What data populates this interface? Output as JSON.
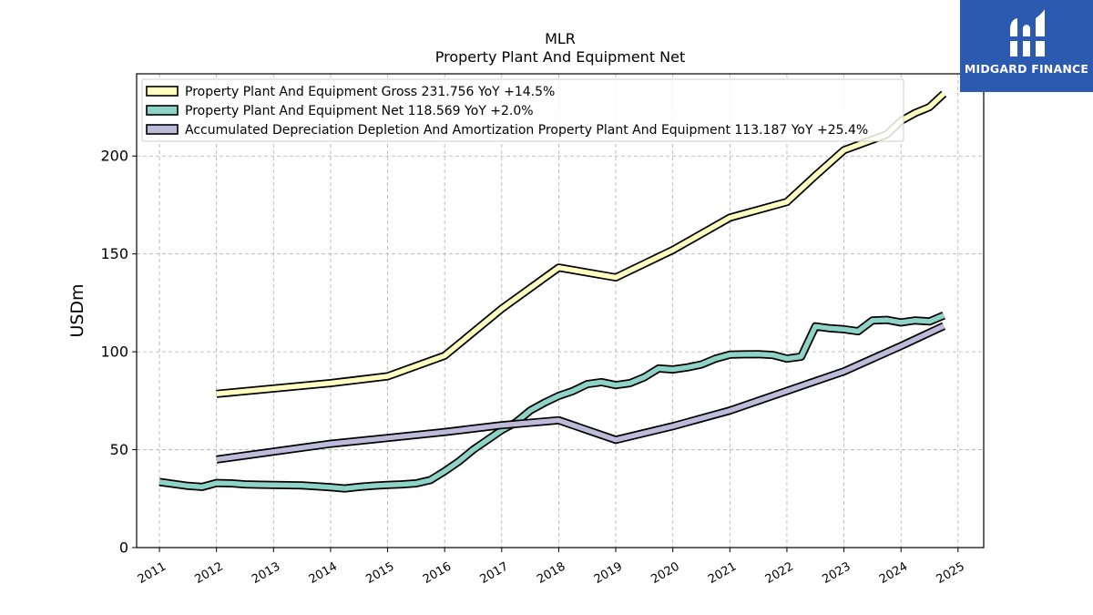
{
  "brand": {
    "name": "MIDGARD FINANCE",
    "color": "#2c5ab0"
  },
  "chart_data": {
    "type": "line",
    "title": "MLR",
    "subtitle": "Property Plant And Equipment Net",
    "ylabel": "USDm",
    "xlabel": "",
    "ylim": [
      0,
      242
    ],
    "xlim": [
      2010.6,
      2025.45
    ],
    "y_ticks": [
      0,
      50,
      100,
      150,
      200
    ],
    "x_ticks": [
      2011,
      2012,
      2013,
      2014,
      2015,
      2016,
      2017,
      2018,
      2019,
      2020,
      2021,
      2022,
      2023,
      2024,
      2025
    ],
    "grid": true,
    "legend_position": "top-left",
    "series": [
      {
        "name": "Property Plant And Equipment Gross",
        "legend_label": "Property Plant And Equipment Gross  231.756 YoY +14.5%",
        "color": "#ffffbf",
        "x": [
          2012.0,
          2014.0,
          2015.0,
          2016.0,
          2017.0,
          2018.0,
          2019.0,
          2020.0,
          2021.0,
          2022.0,
          2022.5,
          2023.0,
          2023.75,
          2024.0,
          2024.25,
          2024.5,
          2024.75
        ],
        "y": [
          78.5,
          84.0,
          87.5,
          98.0,
          122.0,
          143.0,
          138.0,
          152.0,
          168.5,
          176.5,
          190.0,
          203.0,
          211.0,
          218.0,
          222.0,
          225.0,
          231.8
        ]
      },
      {
        "name": "Property Plant And Equipment Net",
        "legend_label": "Property Plant And Equipment Net  118.569 YoY +2.0%",
        "color": "#8dd3c7",
        "x": [
          2011.0,
          2011.5,
          2011.75,
          2012.0,
          2012.25,
          2012.5,
          2012.75,
          2013.0,
          2013.25,
          2013.5,
          2013.75,
          2014.0,
          2014.25,
          2014.5,
          2014.75,
          2015.0,
          2015.25,
          2015.5,
          2015.75,
          2016.0,
          2016.25,
          2016.5,
          2016.75,
          2017.0,
          2017.25,
          2017.5,
          2017.75,
          2018.0,
          2018.25,
          2018.5,
          2018.75,
          2019.0,
          2019.25,
          2019.5,
          2019.75,
          2020.0,
          2020.25,
          2020.5,
          2020.75,
          2021.0,
          2021.25,
          2021.5,
          2021.75,
          2022.0,
          2022.25,
          2022.5,
          2022.75,
          2023.0,
          2023.25,
          2023.5,
          2023.75,
          2024.0,
          2024.25,
          2024.5,
          2024.75
        ],
        "y": [
          33.5,
          31.5,
          31.0,
          33.0,
          32.8,
          32.3,
          32.1,
          32.0,
          31.9,
          31.8,
          31.3,
          30.8,
          30.2,
          31.0,
          31.6,
          32.0,
          32.3,
          32.8,
          34.5,
          39.0,
          44.0,
          50.0,
          55.0,
          60.0,
          64.0,
          70.0,
          74.0,
          77.5,
          80.0,
          83.5,
          84.5,
          83.0,
          84.0,
          87.0,
          91.5,
          91.0,
          92.0,
          93.5,
          96.5,
          98.5,
          98.7,
          98.8,
          98.4,
          96.5,
          97.5,
          113.0,
          112.0,
          111.5,
          110.5,
          116.0,
          116.3,
          115.0,
          116.0,
          115.5,
          118.6
        ]
      },
      {
        "name": "Accumulated Depreciation Depletion And Amortization Property Plant And Equipment",
        "legend_label": "Accumulated Depreciation Depletion And Amortization Property Plant And Equipment  113.187 YoY +25.4%",
        "color": "#bebada",
        "x": [
          2012.0,
          2013.0,
          2014.0,
          2015.0,
          2016.0,
          2017.0,
          2018.0,
          2019.0,
          2020.0,
          2021.0,
          2022.0,
          2023.0,
          2024.0,
          2024.75
        ],
        "y": [
          45.0,
          49.0,
          53.0,
          56.0,
          59.0,
          62.5,
          65.0,
          55.0,
          62.0,
          70.0,
          80.0,
          90.0,
          103.0,
          113.2
        ]
      }
    ]
  }
}
